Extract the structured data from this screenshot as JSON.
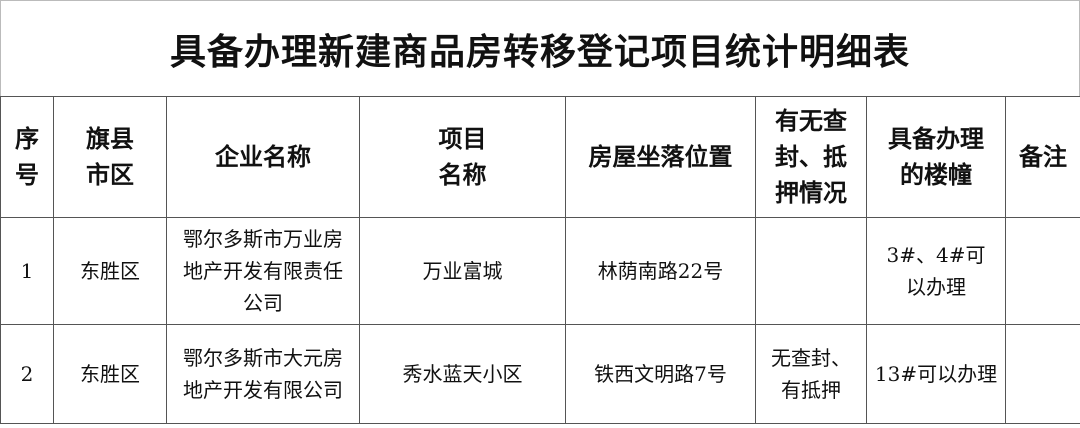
{
  "title": "具备办理新建商品房转移登记项目统计明细表",
  "headers": [
    "序号",
    "旗县市区",
    "企业名称",
    "项目名称",
    "房屋坐落位置",
    "有无查封、抵押情况",
    "具备办理的楼幢",
    "备注"
  ],
  "header_lines": [
    [
      "序",
      "号"
    ],
    [
      "旗县",
      "市区"
    ],
    [
      "企业名称"
    ],
    [
      "项目",
      "名称"
    ],
    [
      "房屋坐落位置"
    ],
    [
      "有无查",
      "封、抵",
      "押情况"
    ],
    [
      "具备办理",
      "的楼幢"
    ],
    [
      "备注"
    ]
  ],
  "rows": [
    {
      "no": "1",
      "district": "东胜区",
      "company": "鄂尔多斯市万业房地产开发有限责任公司",
      "project": "万业富城",
      "location": "林荫南路22号",
      "seizure": "",
      "buildings": "3#、4#可以办理",
      "remarks": ""
    },
    {
      "no": "2",
      "district": "东胜区",
      "company": "鄂尔多斯市大元房地产开发有限公司",
      "project": "秀水蓝天小区",
      "location": "铁西文明路7号",
      "seizure": "无查封、有抵押",
      "buildings": "13#可以办理",
      "remarks": ""
    }
  ]
}
